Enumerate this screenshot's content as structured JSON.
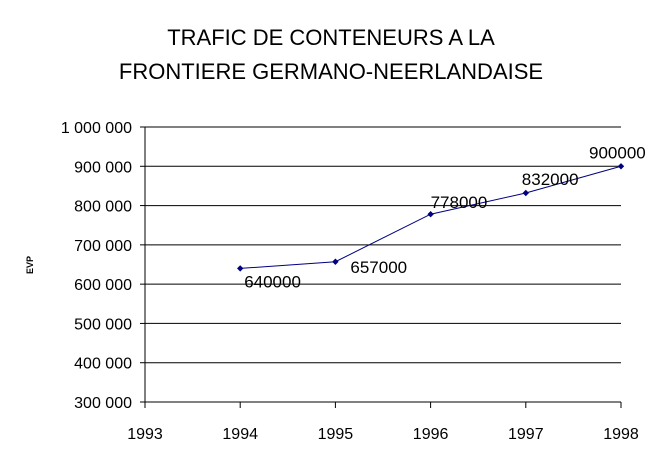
{
  "chart_data": {
    "type": "line",
    "title_lines": [
      "TRAFIC DE CONTENEURS A LA",
      "FRONTIERE GERMANO-NEERLANDAISE"
    ],
    "ylabel": "EVP",
    "xlabel": "",
    "xlim": [
      1993,
      1998
    ],
    "ylim": [
      300000,
      1000000
    ],
    "x_ticks": [
      1993,
      1994,
      1995,
      1996,
      1997,
      1998
    ],
    "y_ticks": [
      300000,
      400000,
      500000,
      600000,
      700000,
      800000,
      900000,
      1000000
    ],
    "y_tick_labels": [
      "300 000",
      "400 000",
      "500 000",
      "600 000",
      "700 000",
      "800 000",
      "900 000",
      "1 000 000"
    ],
    "grid": "horizontal",
    "series": [
      {
        "x": [
          1994,
          1995,
          1996,
          1997,
          1998
        ],
        "values": [
          640000,
          657000,
          778000,
          832000,
          900000
        ],
        "labels": [
          "640000",
          "657000",
          "778000",
          "832000",
          "900000"
        ],
        "color": "#000080"
      }
    ]
  }
}
